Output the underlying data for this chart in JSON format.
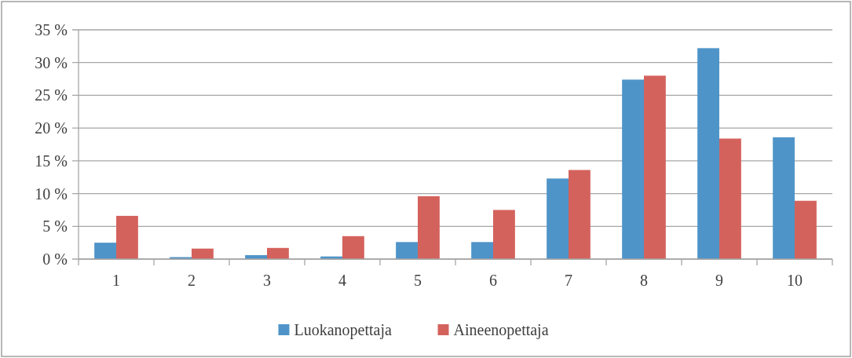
{
  "chart_data": {
    "type": "bar",
    "categories": [
      "1",
      "2",
      "3",
      "4",
      "5",
      "6",
      "7",
      "8",
      "9",
      "10"
    ],
    "series": [
      {
        "name": "Luokanopettaja",
        "color": "#4f94c8",
        "values": [
          2.5,
          0.3,
          0.6,
          0.4,
          2.6,
          2.6,
          12.3,
          27.4,
          32.2,
          18.6
        ]
      },
      {
        "name": "Aineenopettaja",
        "color": "#d4625c",
        "values": [
          6.6,
          1.6,
          1.7,
          3.5,
          9.6,
          7.5,
          13.6,
          28.0,
          18.4,
          8.9
        ]
      }
    ],
    "ylim": [
      0,
      35
    ],
    "yticks": [
      {
        "value": 0,
        "label": "0 %"
      },
      {
        "value": 5,
        "label": "5 %"
      },
      {
        "value": 10,
        "label": "10 %"
      },
      {
        "value": 15,
        "label": "15 %"
      },
      {
        "value": 20,
        "label": "20 %"
      },
      {
        "value": 25,
        "label": "25 %"
      },
      {
        "value": 30,
        "label": "30 %"
      },
      {
        "value": 35,
        "label": "35 %"
      }
    ],
    "grid": "y",
    "legend": "bottom"
  }
}
